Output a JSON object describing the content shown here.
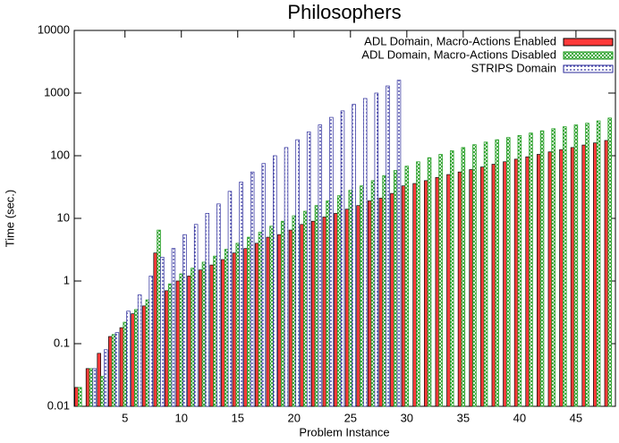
{
  "chart_data": {
    "type": "bar",
    "title": "Philosophers",
    "x_label": "Problem Instance",
    "y_label": "Time (sec.)",
    "log_y": true,
    "legend": "top-right",
    "xlim": [
      0.5,
      48.5
    ],
    "xticks": [
      5,
      10,
      15,
      20,
      25,
      30,
      35,
      40,
      45
    ],
    "ylim": [
      0.01,
      10000
    ],
    "yticks": [
      0.01,
      0.1,
      1,
      10,
      100,
      1000,
      10000
    ],
    "x": [
      1,
      2,
      3,
      4,
      5,
      6,
      7,
      8,
      9,
      10,
      11,
      12,
      13,
      14,
      15,
      16,
      17,
      18,
      19,
      20,
      21,
      22,
      23,
      24,
      25,
      26,
      27,
      28,
      29,
      30,
      31,
      32,
      33,
      34,
      35,
      36,
      37,
      38,
      39,
      40,
      41,
      42,
      43,
      44,
      45,
      46,
      47,
      48
    ],
    "series": [
      {
        "name": "ADL Domain, Macro-Actions Enabled",
        "color": "#ff3a3a",
        "pattern": "solid",
        "values": [
          0.02,
          0.04,
          0.07,
          0.13,
          0.18,
          0.3,
          0.4,
          2.8,
          0.7,
          1.0,
          1.2,
          1.5,
          1.8,
          2.2,
          2.8,
          3.3,
          4,
          5,
          5.5,
          6.5,
          8,
          9,
          10.5,
          12,
          14,
          16,
          19,
          21,
          25,
          33,
          36,
          40,
          45,
          50,
          55,
          60,
          66,
          73,
          80,
          88,
          96,
          105,
          115,
          125,
          135,
          148,
          160,
          175
        ]
      },
      {
        "name": "ADL Domain, Macro-Actions Disabled",
        "color": "#1a9a1a",
        "pattern": "cross",
        "values": [
          0.02,
          0.04,
          0.03,
          0.14,
          0.22,
          0.35,
          0.5,
          6.5,
          0.9,
          1.3,
          1.6,
          2.0,
          2.5,
          3.2,
          4,
          5,
          6,
          7.5,
          9,
          11,
          13,
          16,
          19,
          23,
          28,
          33,
          40,
          48,
          58,
          68,
          80,
          93,
          105,
          120,
          135,
          150,
          165,
          180,
          195,
          210,
          230,
          250,
          270,
          290,
          310,
          330,
          360,
          400
        ]
      },
      {
        "name": "STRIPS Domain",
        "color": "#2a2a9a",
        "pattern": "dots",
        "values": [
          null,
          0.04,
          0.08,
          0.15,
          0.33,
          0.6,
          1.2,
          2.4,
          3.3,
          5.5,
          8,
          12,
          17,
          27,
          38,
          55,
          75,
          100,
          135,
          180,
          240,
          310,
          410,
          520,
          660,
          820,
          1000,
          1300,
          1600,
          null,
          null,
          null,
          null,
          null,
          null,
          null,
          null,
          null,
          null,
          null,
          null,
          null,
          null,
          null,
          null,
          null,
          null,
          null
        ]
      }
    ]
  }
}
